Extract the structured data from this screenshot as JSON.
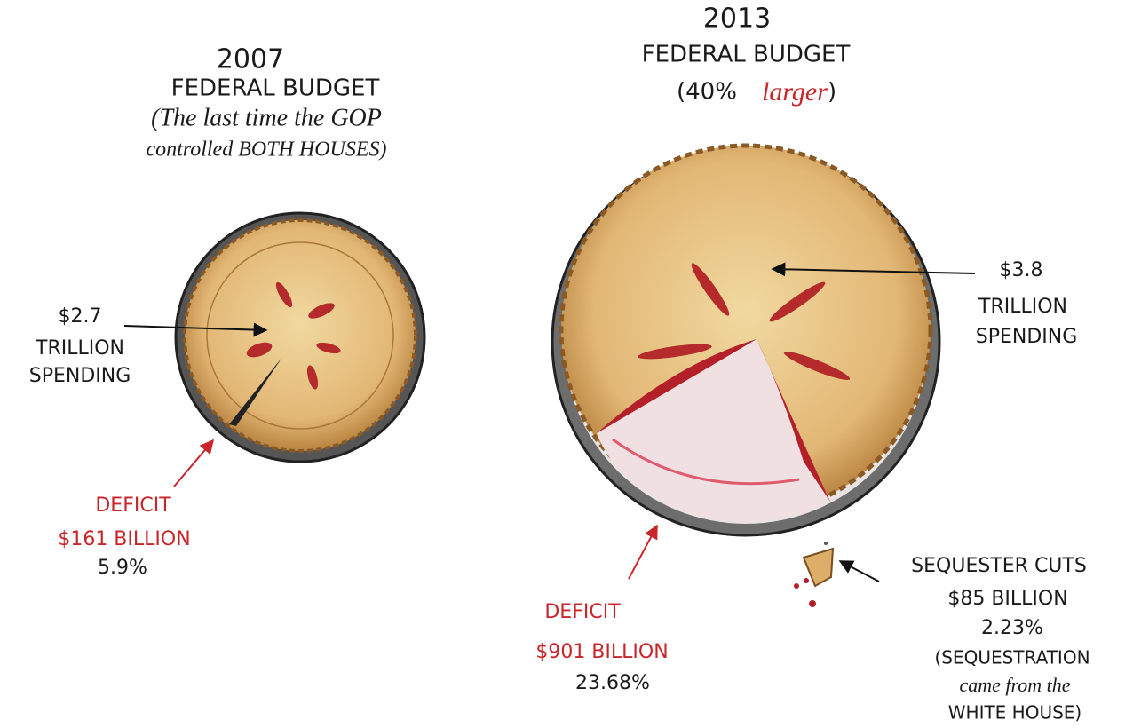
{
  "left": {
    "year": "2007",
    "heading": "FEDERAL BUDGET",
    "note_line1": "(The last time the GOP",
    "note_line2": "controlled BOTH HOUSES)",
    "spending": [
      "$2.7",
      "TRILLION",
      "SPENDING"
    ],
    "deficit": [
      "DEFICIT",
      "$161 BILLION",
      "5.9%"
    ]
  },
  "right": {
    "year": "2013",
    "heading": "FEDERAL BUDGET",
    "note_open": "(40%",
    "note_red": "larger",
    "note_close": ")",
    "spending": [
      "$3.8",
      "TRILLION",
      "SPENDING"
    ],
    "deficit": [
      "DEFICIT",
      "$901 BILLION",
      "23.68%"
    ],
    "sequester": [
      "SEQUESTER CUTS",
      "$85 BILLION",
      "2.23%",
      "(SEQUESTRATION",
      "came from the",
      "WHITE HOUSE)"
    ]
  }
}
